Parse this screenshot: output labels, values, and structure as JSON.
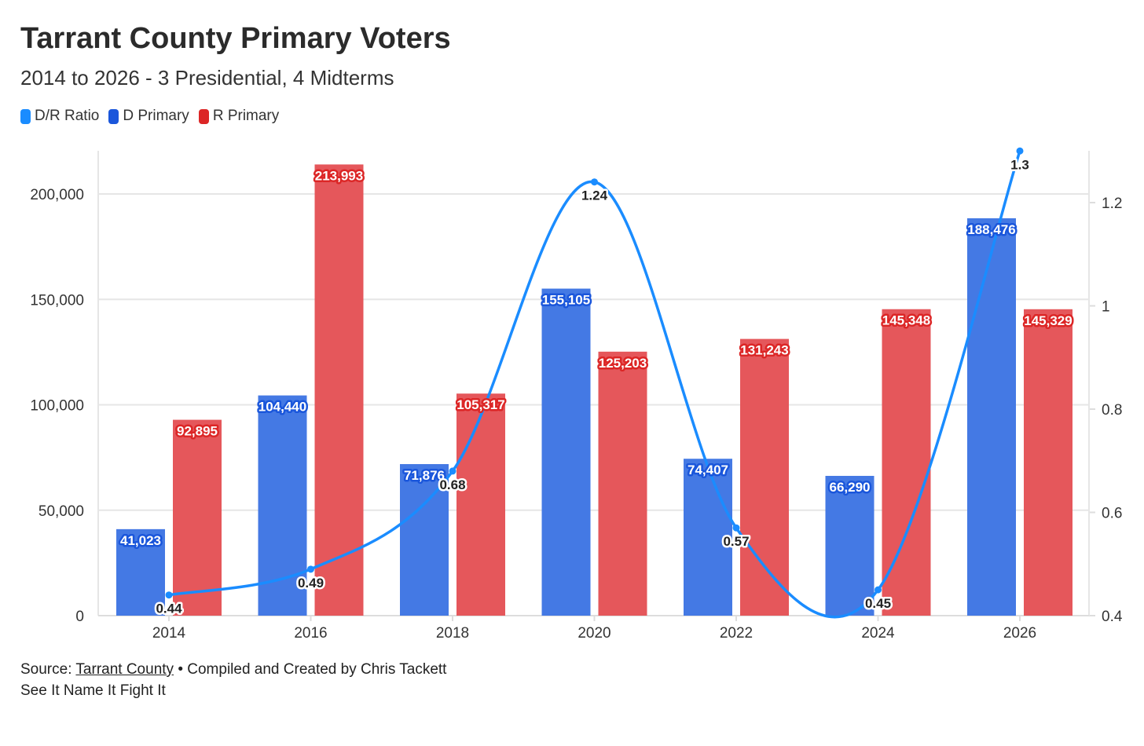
{
  "title": "Tarrant County Primary Voters",
  "subtitle": "2014 to 2026 - 3 Presidential, 4 Midterms",
  "footer": {
    "source_prefix": "Source: ",
    "source_link": "Tarrant County",
    "source_suffix": " • Compiled and Created by Chris Tackett",
    "tagline": "See It Name It Fight It"
  },
  "colors": {
    "ratio": "#1a8cff",
    "d": "#1a56db",
    "d_bar": "#4479e4",
    "r": "#dc2626",
    "r_bar": "#e5575b"
  },
  "chart_data": {
    "type": "bar",
    "title": "Tarrant County Primary Voters",
    "categories": [
      "2014",
      "2016",
      "2018",
      "2020",
      "2022",
      "2024",
      "2026"
    ],
    "series": [
      {
        "name": "D/R Ratio",
        "type": "line",
        "axis": "right",
        "values": [
          0.44,
          0.49,
          0.68,
          1.24,
          0.57,
          0.45,
          1.3
        ],
        "labels": [
          "0.44",
          "0.49",
          "0.68",
          "1.24",
          "0.57",
          "0.45",
          "1.3"
        ]
      },
      {
        "name": "D Primary",
        "type": "bar",
        "axis": "left",
        "values": [
          41023,
          104440,
          71876,
          155105,
          74407,
          66290,
          188476
        ],
        "labels": [
          "41,023",
          "104,440",
          "71,876",
          "155,105",
          "74,407",
          "66,290",
          "188,476"
        ]
      },
      {
        "name": "R Primary",
        "type": "bar",
        "axis": "left",
        "values": [
          92895,
          213993,
          105317,
          125203,
          131243,
          145348,
          145329
        ],
        "labels": [
          "92,895",
          "213,993",
          "105,317",
          "125,203",
          "131,243",
          "145,348",
          "145,329"
        ]
      }
    ],
    "left_axis": {
      "ylim": [
        0,
        220000
      ],
      "ticks": [
        "0",
        "50,000",
        "100,000",
        "150,000",
        "200,000"
      ],
      "tick_values": [
        0,
        50000,
        100000,
        150000,
        200000
      ]
    },
    "right_axis": {
      "ylim": [
        0.4,
        1.3
      ],
      "ticks": [
        "0.4",
        "0.6",
        "0.8",
        "1",
        "1.2"
      ],
      "tick_values": [
        0.4,
        0.6,
        0.8,
        1.0,
        1.2
      ]
    },
    "grid": true,
    "legend": "top-left"
  }
}
